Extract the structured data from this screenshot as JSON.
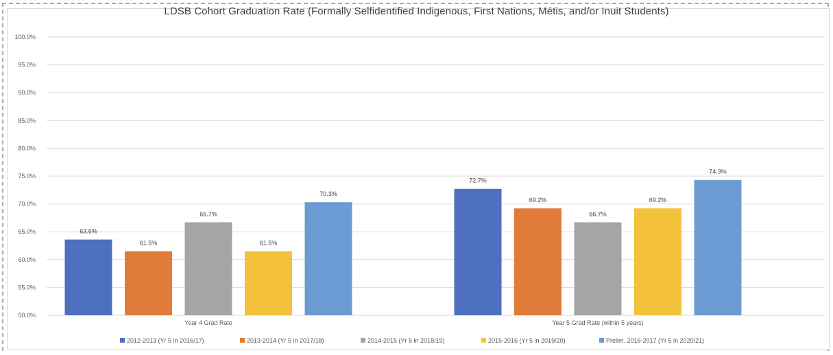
{
  "chart_data": {
    "type": "bar",
    "title": "LDSB Cohort Graduation Rate (Formally Selfidentified Indigenous, First Nations, Métis, and/or Inuit Students)",
    "categories": [
      "Year 4 Grad Rate",
      "Year 5 Grad Rate (within 5 years)"
    ],
    "series": [
      {
        "name": "2012-2013 (Yr 5 in 2016/17)",
        "values": [
          63.6,
          72.7
        ],
        "labels": [
          "63.6%",
          "72.7%"
        ],
        "color": "#4f6fbf"
      },
      {
        "name": "2013-2014 (Yr 5 in 2017/18)",
        "values": [
          61.5,
          69.2
        ],
        "labels": [
          "61.5%",
          "69.2%"
        ],
        "color": "#e07b39"
      },
      {
        "name": "2014-2015 (Yr 5 in 2018/19)",
        "values": [
          66.7,
          66.7
        ],
        "labels": [
          "66.7%",
          "66.7%"
        ],
        "color": "#a5a5a5"
      },
      {
        "name": "2015-2016 (Yr 5 in 2019/20)",
        "values": [
          61.5,
          69.2
        ],
        "labels": [
          "61.5%",
          "69.2%"
        ],
        "color": "#f4c13a"
      },
      {
        "name": "Prelim. 2016-2017 (Yr 5 in 2020/21)",
        "values": [
          70.3,
          74.3
        ],
        "labels": [
          "70.3%",
          "74.3%"
        ],
        "color": "#6b9bd2"
      }
    ],
    "ylim": [
      50,
      100
    ],
    "yticks": [
      "50.0%",
      "55.0%",
      "60.0%",
      "65.0%",
      "70.0%",
      "75.0%",
      "80.0%",
      "85.0%",
      "90.0%",
      "95.0%",
      "100.0%"
    ],
    "ytick_values": [
      50,
      55,
      60,
      65,
      70,
      75,
      80,
      85,
      90,
      95,
      100
    ],
    "grid": true,
    "legend_position": "bottom"
  }
}
